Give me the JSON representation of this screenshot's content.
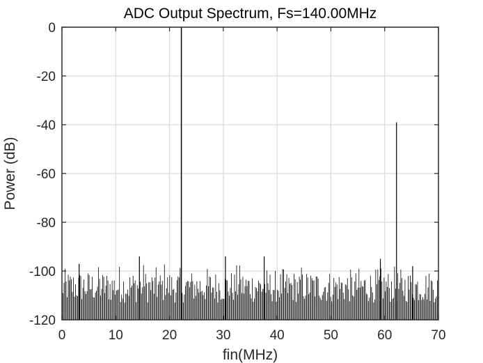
{
  "chart_data": {
    "type": "line",
    "title": "ADC Output Spectrum, Fs=140.00MHz",
    "xlabel": "fin(MHz)",
    "ylabel": "Power (dB)",
    "xlim": [
      0,
      70
    ],
    "ylim": [
      -120,
      0
    ],
    "xticks": [
      0,
      10,
      20,
      30,
      40,
      50,
      60,
      70
    ],
    "yticks": [
      0,
      -20,
      -40,
      -60,
      -80,
      -100,
      -120
    ],
    "xtick_labels": [
      "0",
      "10",
      "20",
      "30",
      "40",
      "50",
      "60",
      "70"
    ],
    "ytick_labels": [
      "0",
      "-20",
      "-40",
      "-60",
      "-80",
      "-100",
      "-120"
    ],
    "grid": true,
    "colors": {
      "line": "#000000",
      "grid": "#dcdcdc",
      "axes": "#262626"
    },
    "fundamental": {
      "freq_mhz": 22.2,
      "power_db": 0
    },
    "spurs": [
      {
        "freq_mhz": 62.2,
        "power_db": -39
      },
      {
        "freq_mhz": 14.4,
        "power_db": -94
      },
      {
        "freq_mhz": 30.4,
        "power_db": -94
      },
      {
        "freq_mhz": 37.6,
        "power_db": -94
      },
      {
        "freq_mhz": 59.2,
        "power_db": -95
      },
      {
        "freq_mhz": 3.2,
        "power_db": -97
      },
      {
        "freq_mhz": 65.2,
        "power_db": -98
      }
    ],
    "noise_floor": {
      "top_db": -97,
      "bottom_db": -120,
      "typical_db": -105,
      "bins": 360
    }
  }
}
